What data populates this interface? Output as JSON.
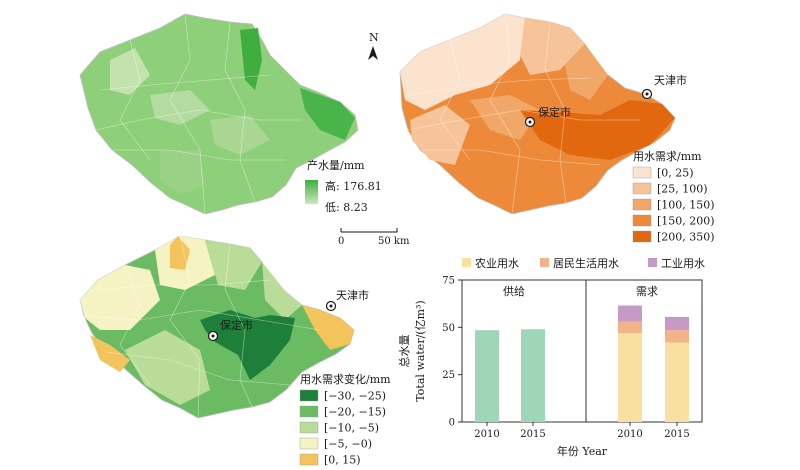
{
  "maps": {
    "supply": {
      "legend_title": "产水量/mm",
      "high_label": "高: 176.81",
      "low_label": "低: 8.23",
      "gradient": [
        "#3fae3f",
        "#c9e8b8"
      ]
    },
    "demand": {
      "city_tianjin": "天津市",
      "city_baoding": "保定市",
      "legend_title": "用水需求/mm",
      "classes": [
        {
          "label": "[0, 25)",
          "color": "#fbe3cd"
        },
        {
          "label": "[25, 100)",
          "color": "#f6c498"
        },
        {
          "label": "[100, 150)",
          "color": "#f1a767"
        },
        {
          "label": "[150, 200)",
          "color": "#ec8a3a"
        },
        {
          "label": "[200, 350)",
          "color": "#e2680f"
        }
      ]
    },
    "change": {
      "city_tianjin": "天津市",
      "city_baoding": "保定市",
      "legend_title": "用水需求变化/mm",
      "classes": [
        {
          "label": "[−30, −25)",
          "color": "#1e7f3a"
        },
        {
          "label": "[−20, −15)",
          "color": "#6bbb63"
        },
        {
          "label": "[−10, −5)",
          "color": "#b9dc98"
        },
        {
          "label": "[−5, −0)",
          "color": "#f5f3c4"
        },
        {
          "label": "[0, 15)",
          "color": "#f3c35c"
        }
      ]
    },
    "north_label": "N",
    "scale_label_0": "0",
    "scale_label_50": "50 km"
  },
  "chart_data": {
    "type": "bar",
    "ylabel_cn": "总水量",
    "ylabel_en": "Total water/(亿m³)",
    "xlabel": "年份 Year",
    "ylim": [
      0,
      75
    ],
    "yticks": [
      0,
      25,
      50,
      75
    ],
    "panels": [
      {
        "title": "供给",
        "categories": [
          "2010",
          "2015"
        ]
      },
      {
        "title": "需求",
        "categories": [
          "2010",
          "2015"
        ]
      }
    ],
    "supply_values": [
      48.5,
      49.0
    ],
    "demand_series": [
      {
        "name": "农业用水",
        "color": "#f9e0a0",
        "values": [
          47.0,
          42.0
        ]
      },
      {
        "name": "居民生活用水",
        "color": "#f3b38a",
        "values": [
          6.0,
          6.5
        ]
      },
      {
        "name": "工业用水",
        "color": "#c59ac6",
        "values": [
          8.5,
          7.0
        ]
      }
    ],
    "supply_color": "#9fd6b8"
  }
}
